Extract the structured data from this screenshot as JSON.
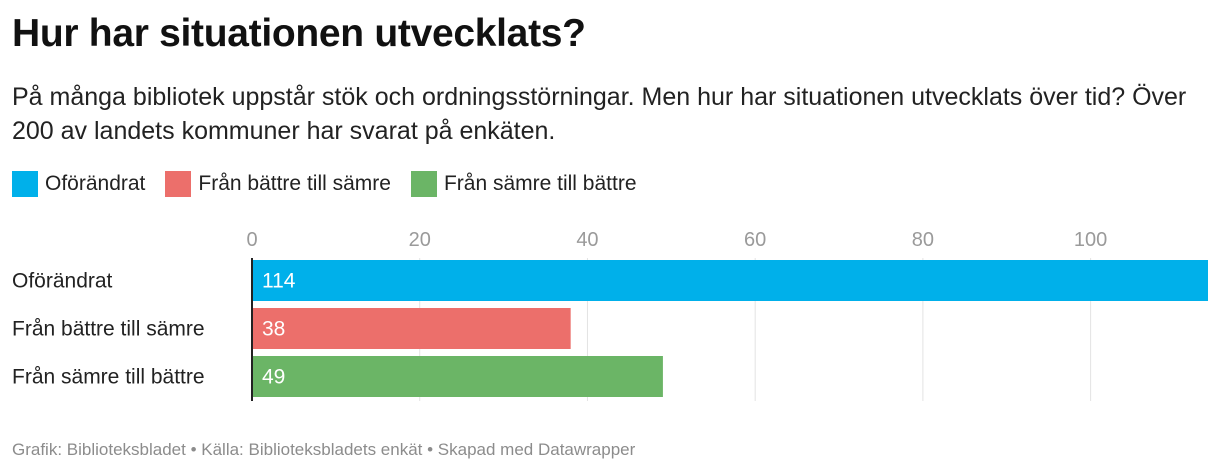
{
  "header": {
    "title": "Hur har situationen utvecklats?",
    "subtitle": "På många bibliotek uppstår stök och ordningsstörningar. Men hur har situationen utvecklats över tid? Över 200 av landets kommuner har svarat på enkäten."
  },
  "legend": {
    "items": [
      {
        "label": "Oförändrat",
        "color": "#00b0ea"
      },
      {
        "label": "Från bättre till sämre",
        "color": "#ec6f6b"
      },
      {
        "label": "Från sämre till bättre",
        "color": "#6bb566"
      }
    ]
  },
  "chart_data": {
    "type": "bar",
    "orientation": "horizontal",
    "categories": [
      "Oförändrat",
      "Från bättre till sämre",
      "Från sämre till bättre"
    ],
    "values": [
      114,
      38,
      49
    ],
    "colors": [
      "#00b0ea",
      "#ec6f6b",
      "#6bb566"
    ],
    "xlim": [
      0,
      114
    ],
    "xticks": [
      0,
      20,
      40,
      60,
      80,
      100
    ],
    "grid": true,
    "legend_position": "top-left",
    "title": "",
    "xlabel": "",
    "ylabel": ""
  },
  "footer": {
    "text": "Grafik: Biblioteksbladet • Källa: Biblioteksbladets enkät • Skapad med Datawrapper"
  }
}
